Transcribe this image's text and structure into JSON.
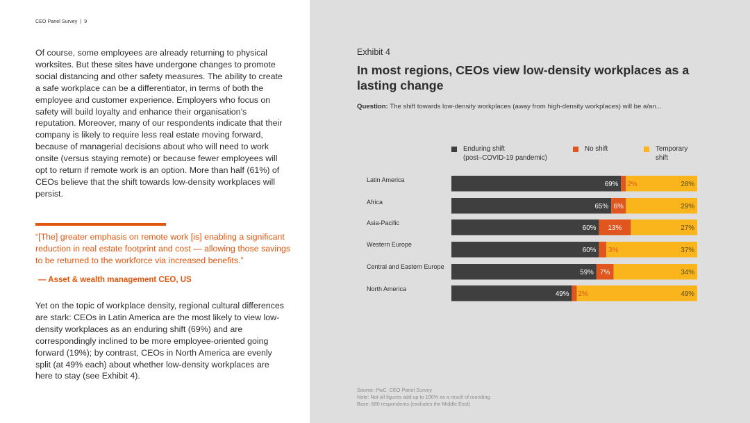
{
  "header": {
    "title": "CEO Panel Survey",
    "separator": "|",
    "page": "9"
  },
  "left": {
    "paragraph1": "Of course, some employees are already returning to physical worksites. But these sites have undergone changes to promote social distancing and other safety measures. The ability to create a safe workplace can be a differentiator, in terms of both the employee and customer experience. Employers who focus on safety will build loyalty and enhance their organisation’s reputation. Moreover, many of our respondents indicate that their company is likely to require less real estate moving forward, because of managerial decisions about who will need to work onsite (versus staying remote) or because fewer employees will opt to return if remote work is an option. More than half (61%) of CEOs believe that the shift towards low-density workplaces will persist.",
    "quote": "“[The] greater emphasis on remote work [is] enabling a significant reduction in real estate footprint and cost — allowing those savings to be returned to the workforce via increased benefits.”",
    "attribution": "— Asset & wealth management CEO, US",
    "paragraph2": "Yet on the topic of workplace density, regional cultural differences are stark: CEOs in Latin America are the most likely to view low-density workplaces as an enduring shift (69%) and are correspondingly inclined to be more employee-oriented going forward (19%); by contrast, CEOs in North America are evenly split (at 49% each) about whether low-density workplaces are here to stay (see Exhibit 4)."
  },
  "exhibit": {
    "label": "Exhibit 4",
    "title": "In most regions, CEOs view low-density workplaces as a lasting change",
    "question_label": "Question:",
    "question_text": "The shift towards low-density workplaces (away from high-density workplaces) will be a/an..."
  },
  "legend": {
    "enduring": {
      "line1": "Enduring shift",
      "line2": "(post–COVID-19 pandemic)",
      "color": "#3f3f3f"
    },
    "no_shift": {
      "line1": "No shift",
      "color": "#e0561e"
    },
    "temporary": {
      "line1": "Temporary",
      "line2": "shift",
      "color": "#fbb51c"
    }
  },
  "chart_data": {
    "type": "bar",
    "orientation": "horizontal",
    "stacked": true,
    "title": "In most regions, CEOs view low-density workplaces as a lasting change",
    "categories": [
      "Latin America",
      "Africa",
      "Asia-Pacific",
      "Western Europe",
      "Central and Eastern Europe",
      "North America"
    ],
    "series": [
      {
        "name": "Enduring shift (post–COVID-19 pandemic)",
        "color": "#3f3f3f",
        "values": [
          69,
          65,
          60,
          60,
          59,
          49
        ]
      },
      {
        "name": "No shift",
        "color": "#e0561e",
        "values": [
          2,
          6,
          13,
          3,
          7,
          2
        ]
      },
      {
        "name": "Temporary shift",
        "color": "#fbb51c",
        "values": [
          28,
          29,
          27,
          37,
          34,
          49
        ]
      }
    ],
    "value_suffix": "%",
    "xlim": [
      0,
      100
    ],
    "legend_position": "top"
  },
  "footnotes": {
    "source": "Source: PwC, CEO Panel Survey",
    "note": "Note: Not all figures add up to 100% as a result of rounding.",
    "base": "Base: 680 respondents (excludes the Middle East)"
  }
}
